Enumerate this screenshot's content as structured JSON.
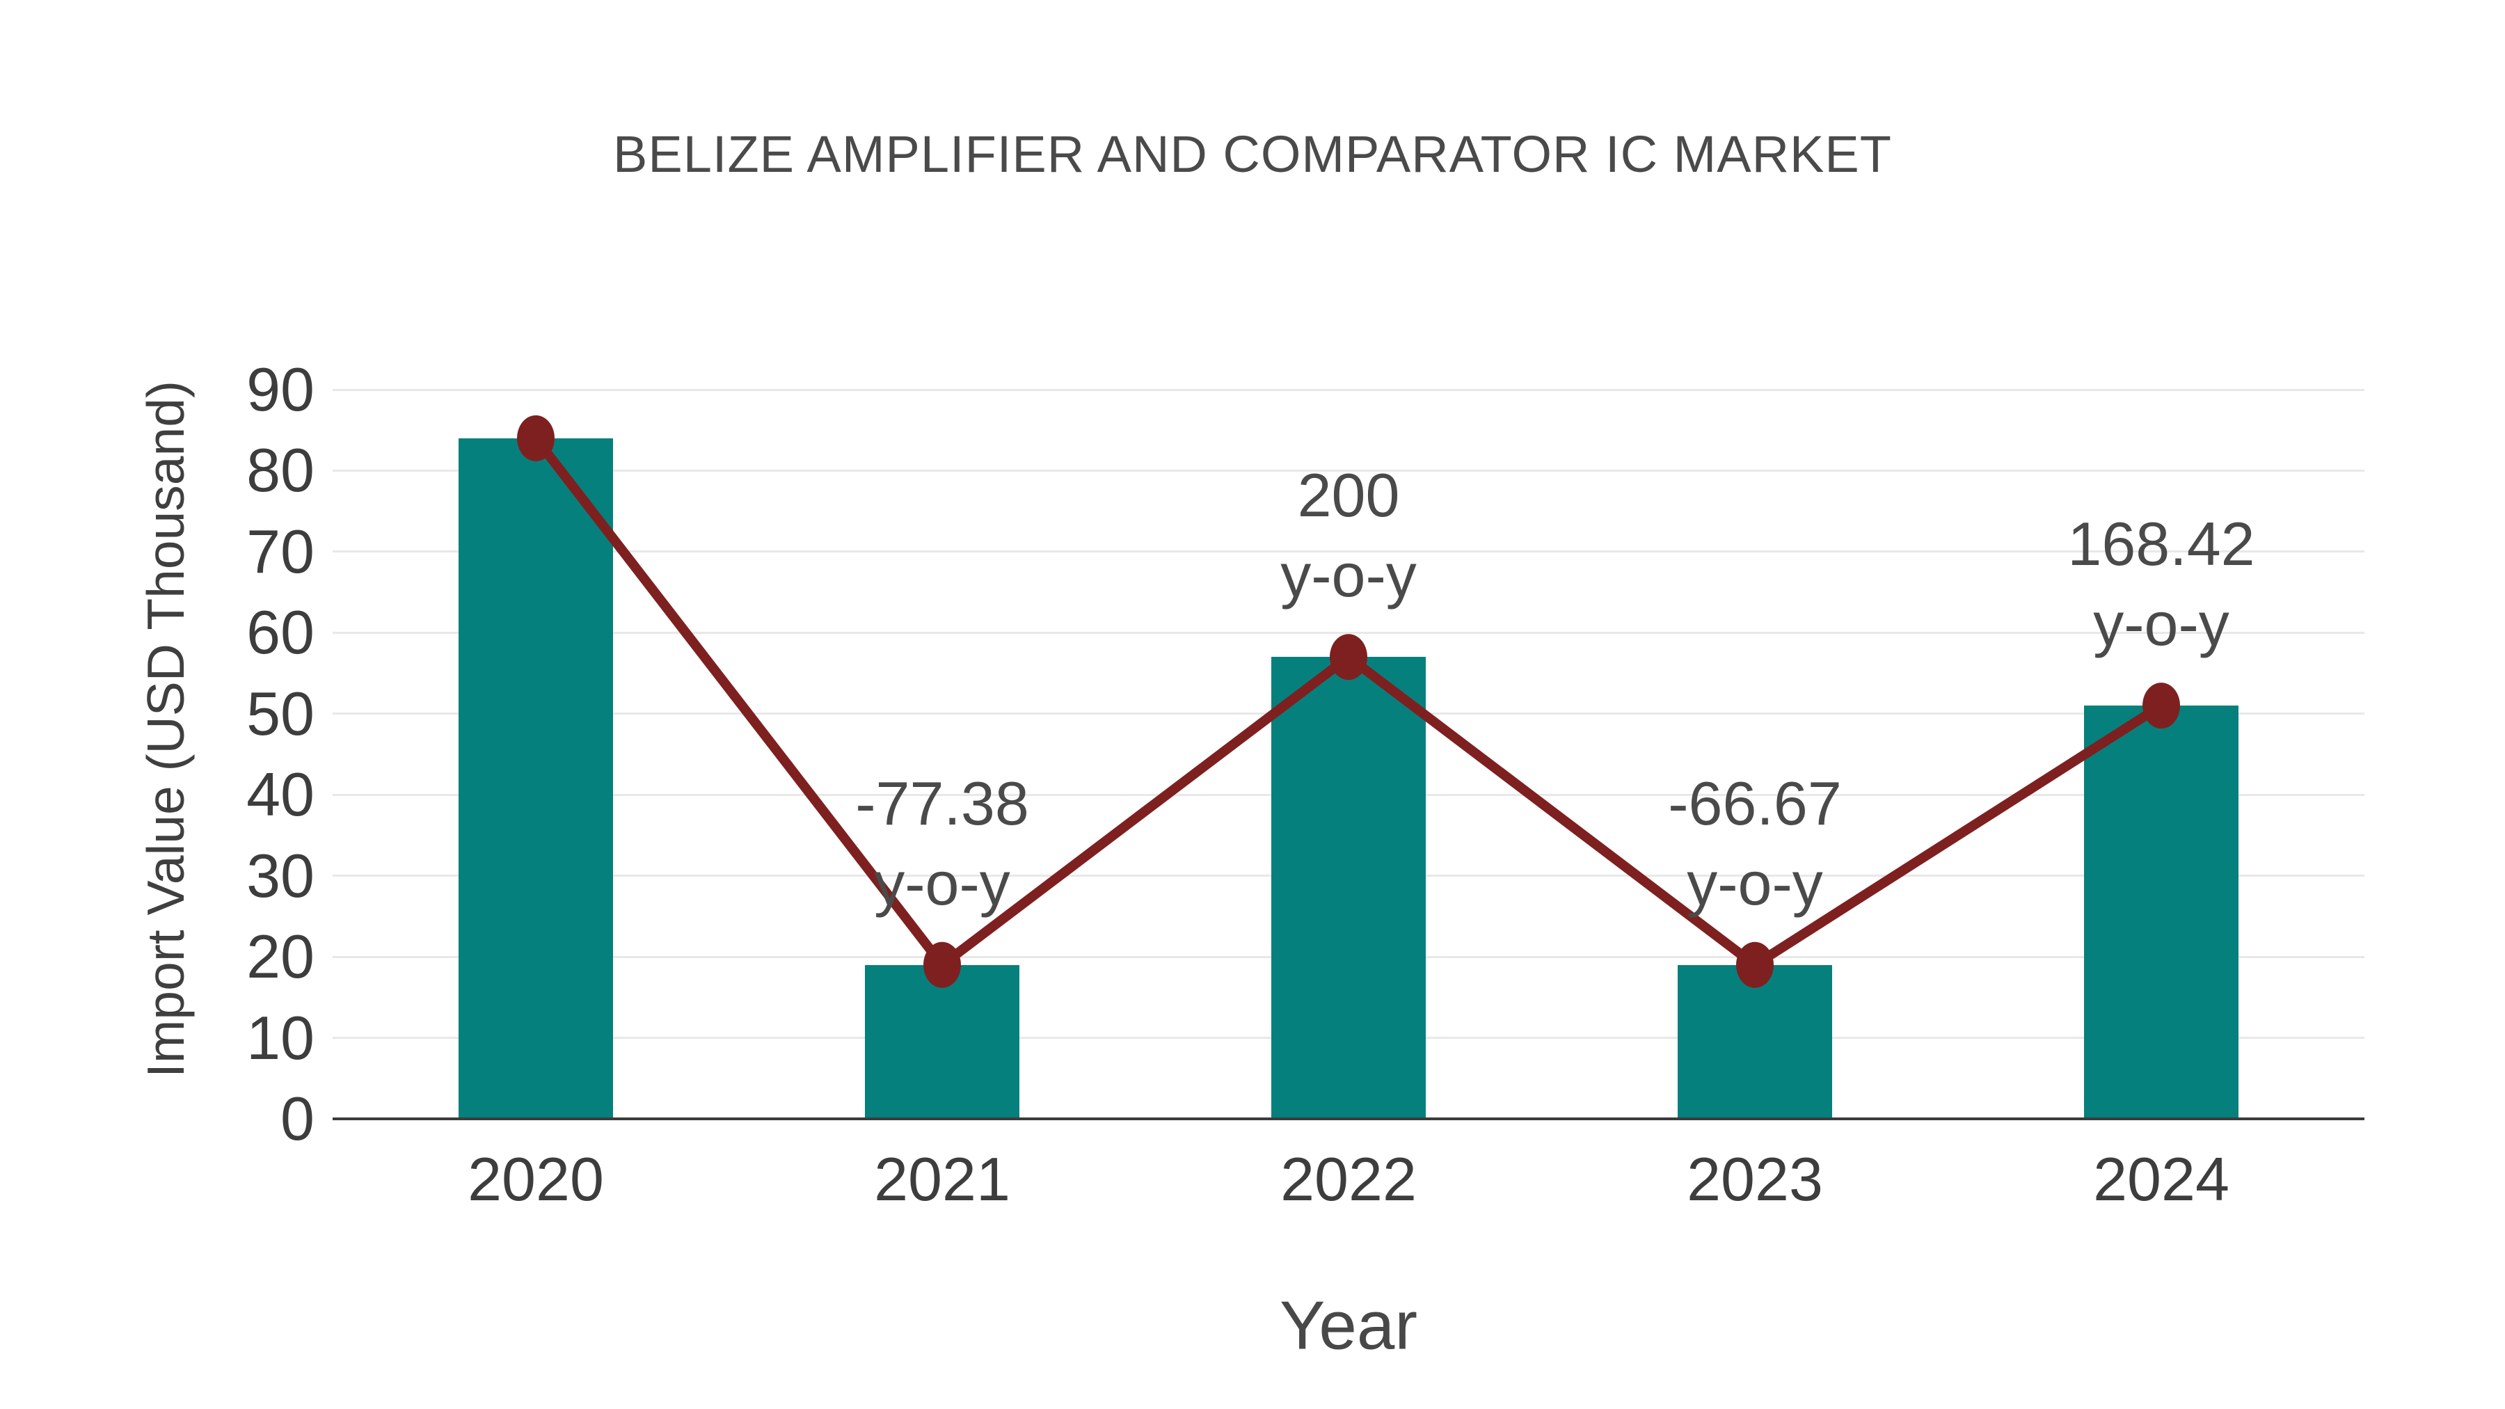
{
  "title": "BELIZE AMPLIFIER AND COMPARATOR IC MARKET",
  "chart_data": {
    "type": "bar",
    "categories": [
      "2020",
      "2021",
      "2022",
      "2023",
      "2024"
    ],
    "series": [
      {
        "name": "Import Value bars",
        "type": "bar",
        "values": [
          84,
          19,
          57,
          19,
          51
        ]
      },
      {
        "name": "Import Value trend line",
        "type": "line",
        "values": [
          84,
          19,
          57,
          19,
          51
        ]
      }
    ],
    "annotations": {
      "suffix": "y-o-y",
      "yoy_values": [
        null,
        "-77.38",
        "200",
        "-66.67",
        "168.42"
      ]
    },
    "title": "BELIZE AMPLIFIER AND COMPARATOR IC MARKET",
    "xlabel": "Year",
    "ylabel": "Import Value (USD Thousand)",
    "ylim": [
      0,
      90
    ],
    "yticks": [
      0,
      10,
      20,
      30,
      40,
      50,
      60,
      70,
      80,
      90
    ],
    "grid": true,
    "legend_position": "none"
  },
  "colors": {
    "bar": "#06807d",
    "line": "#7e2020",
    "marker": "#7e2020",
    "gridline": "#e8e8e8",
    "axis": "#3c3c3c",
    "text": "#3d3d3d",
    "title_text": "#4a4a4a",
    "background": "#ffffff"
  }
}
